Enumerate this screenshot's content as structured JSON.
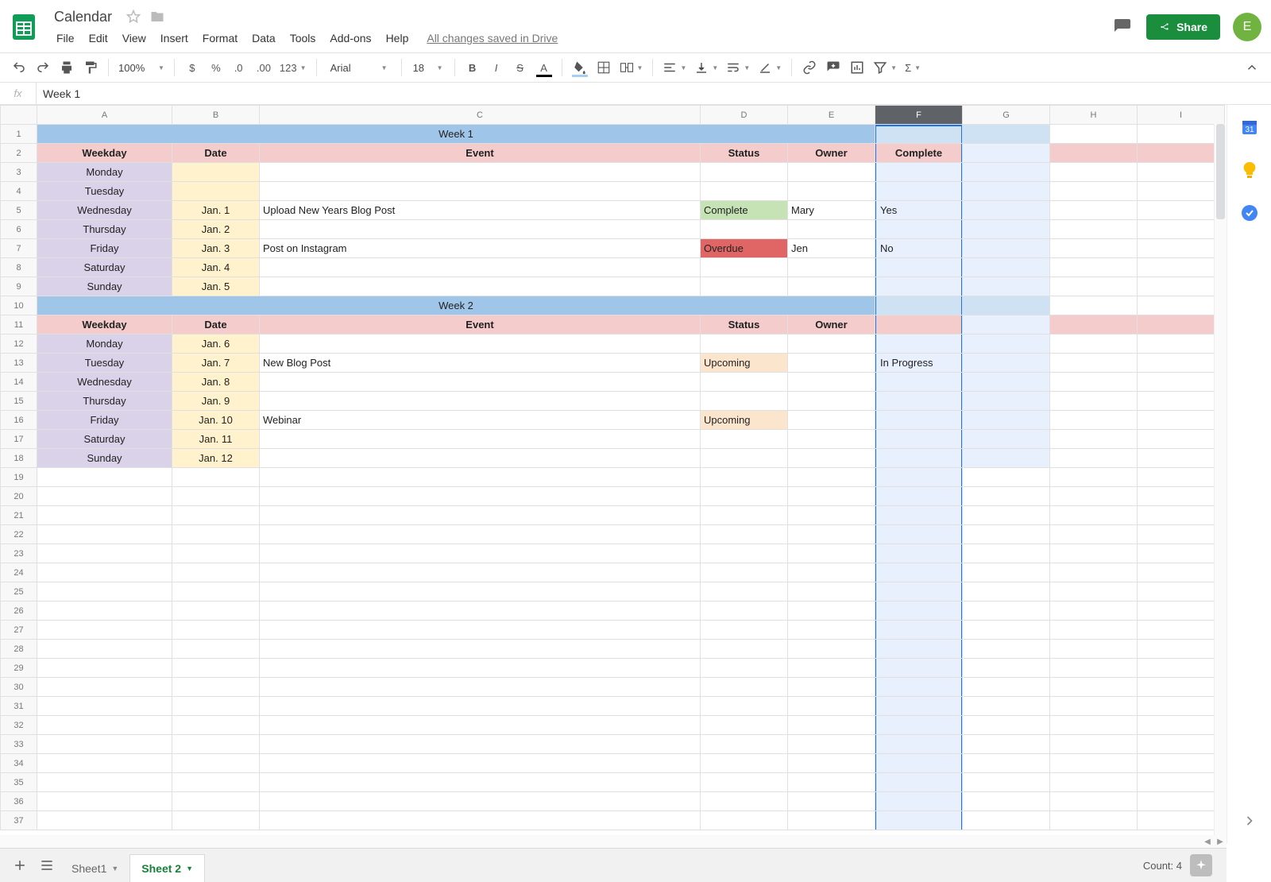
{
  "doc": {
    "title": "Calendar",
    "save_status": "All changes saved in Drive"
  },
  "menus": [
    "File",
    "Edit",
    "View",
    "Insert",
    "Format",
    "Data",
    "Tools",
    "Add-ons",
    "Help"
  ],
  "share": {
    "label": "Share"
  },
  "avatar": {
    "letter": "E",
    "color": "#71b340"
  },
  "toolbar": {
    "zoom": "100%",
    "font": "Arial",
    "font_size": "18"
  },
  "formula_bar": {
    "value": "Week 1"
  },
  "columns": {
    "letters": [
      "A",
      "B",
      "C",
      "D",
      "E",
      "F",
      "G",
      "H",
      "I"
    ],
    "widths": [
      170,
      110,
      555,
      110,
      110,
      110,
      110,
      110,
      110
    ],
    "selected_index": 5
  },
  "row_count": 37,
  "sheet_tabs": {
    "inactive": "Sheet1",
    "active": "Sheet 2"
  },
  "status_bar": {
    "count_label": "Count: 4"
  },
  "colors": {
    "week_header": "#9fc5e8",
    "week_header_sel": "#cfe2f3",
    "column_header_row": "#f4cccc",
    "weekday": "#d9d2e9",
    "date": "#fff2cc",
    "status_complete": "#c6e3b5",
    "status_overdue": "#e06666",
    "status_upcoming": "#fce5cd",
    "selected_col_fill": "#e8f0fe",
    "selection_border": "#1a73e8"
  },
  "cells": {
    "week1_title": "Week 1",
    "week2_title": "Week 2",
    "headers": {
      "weekday": "Weekday",
      "date": "Date",
      "event": "Event",
      "status": "Status",
      "owner": "Owner",
      "complete": "Complete"
    },
    "week1": [
      {
        "day": "Monday",
        "date": "",
        "event": "",
        "status": "",
        "owner": "",
        "complete": ""
      },
      {
        "day": "Tuesday",
        "date": "",
        "event": "",
        "status": "",
        "owner": "",
        "complete": ""
      },
      {
        "day": "Wednesday",
        "date": "Jan. 1",
        "event": "Upload New Years Blog Post",
        "status": "Complete",
        "owner": "Mary",
        "complete": "Yes"
      },
      {
        "day": "Thursday",
        "date": "Jan. 2",
        "event": "",
        "status": "",
        "owner": "",
        "complete": ""
      },
      {
        "day": "Friday",
        "date": "Jan. 3",
        "event": "Post on Instagram",
        "status": "Overdue",
        "owner": "Jen",
        "complete": "No"
      },
      {
        "day": "Saturday",
        "date": "Jan. 4",
        "event": "",
        "status": "",
        "owner": "",
        "complete": ""
      },
      {
        "day": "Sunday",
        "date": "Jan. 5",
        "event": "",
        "status": "",
        "owner": "",
        "complete": ""
      }
    ],
    "week2": [
      {
        "day": "Monday",
        "date": "Jan. 6",
        "event": "",
        "status": "",
        "owner": "",
        "complete": ""
      },
      {
        "day": "Tuesday",
        "date": "Jan. 7",
        "event": "New Blog Post",
        "status": "Upcoming",
        "owner": "",
        "complete": "In Progress"
      },
      {
        "day": "Wednesday",
        "date": "Jan. 8",
        "event": "",
        "status": "",
        "owner": "",
        "complete": ""
      },
      {
        "day": "Thursday",
        "date": "Jan. 9",
        "event": "",
        "status": "",
        "owner": "",
        "complete": ""
      },
      {
        "day": "Friday",
        "date": "Jan. 10",
        "event": "Webinar",
        "status": "Upcoming",
        "owner": "",
        "complete": ""
      },
      {
        "day": "Saturday",
        "date": "Jan. 11",
        "event": "",
        "status": "",
        "owner": "",
        "complete": ""
      },
      {
        "day": "Sunday",
        "date": "Jan. 12",
        "event": "",
        "status": "",
        "owner": "",
        "complete": ""
      }
    ]
  }
}
